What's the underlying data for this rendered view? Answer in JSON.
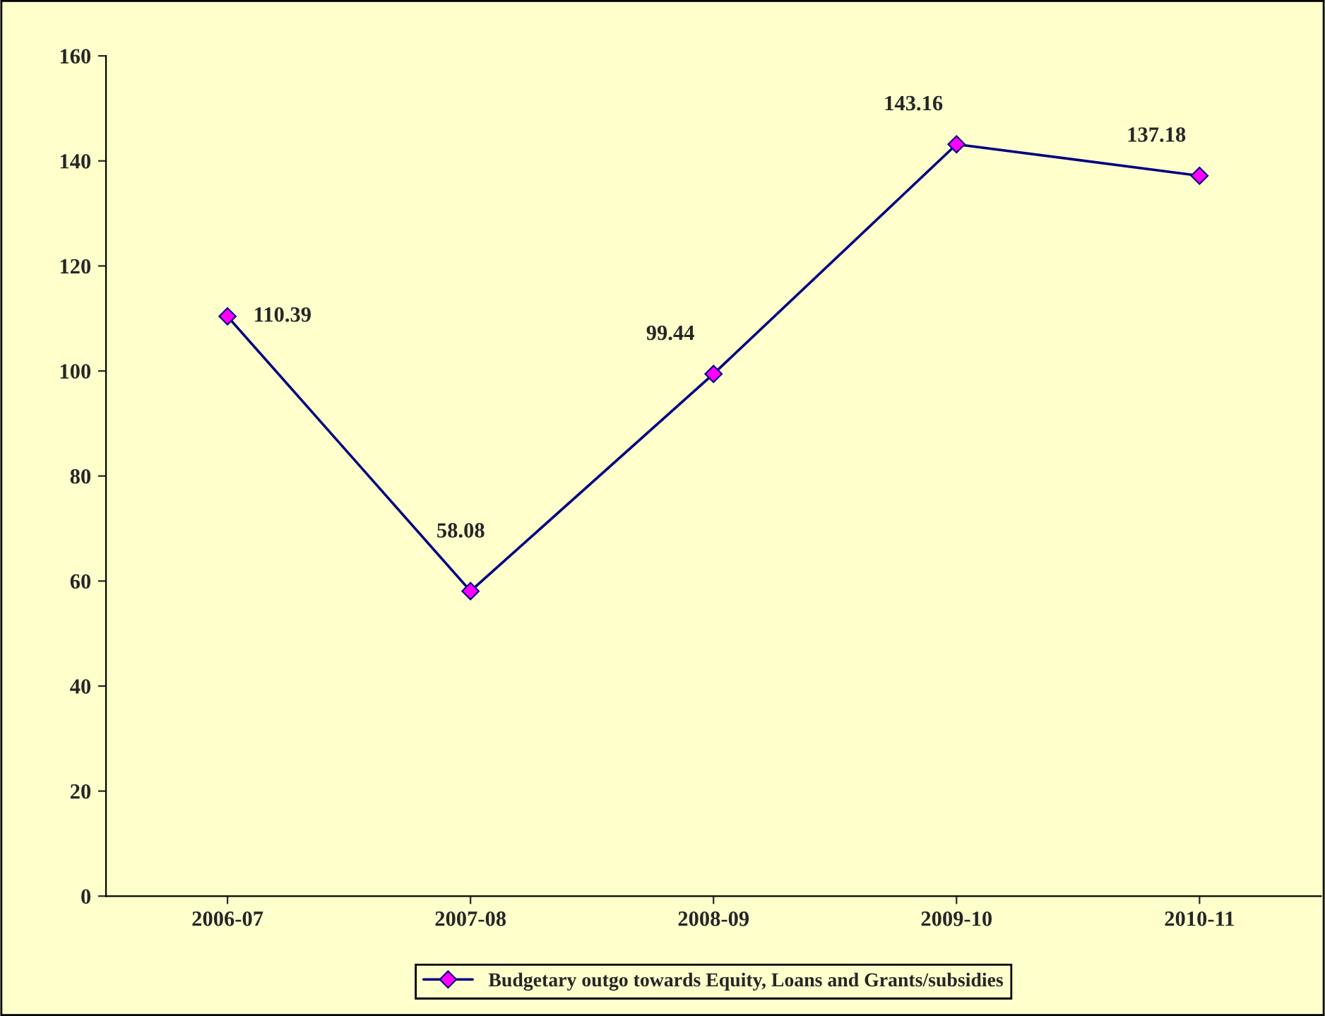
{
  "chart_data": {
    "type": "line",
    "categories": [
      "2006-07",
      "2007-08",
      "2008-09",
      "2009-10",
      "2010-11"
    ],
    "series": [
      {
        "name": "Budgetary outgo towards Equity, Loans and Grants/subsidies",
        "color": "#000080",
        "values": [
          110.39,
          58.08,
          99.44,
          143.16,
          137.18
        ]
      }
    ],
    "ylim": [
      0,
      160
    ],
    "yticks": [
      0,
      20,
      40,
      60,
      80,
      100,
      120,
      140,
      160
    ],
    "marker": "diamond",
    "data_labels": true,
    "legend": "bottom",
    "grid": false
  }
}
